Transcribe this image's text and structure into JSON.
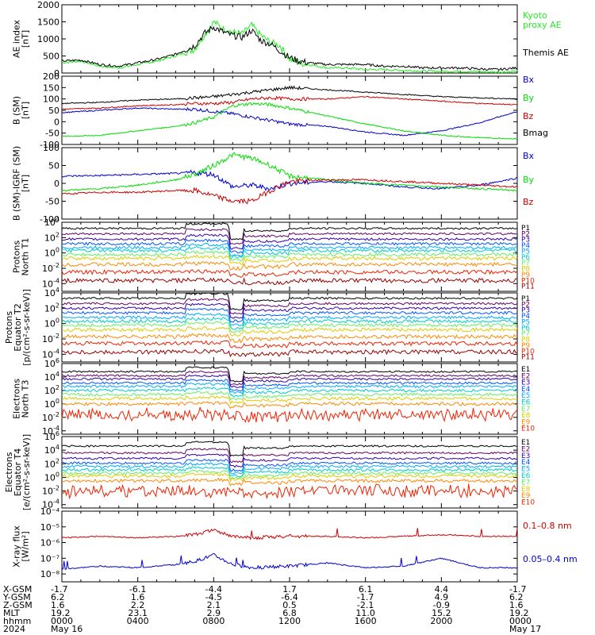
{
  "colors": {
    "black": "#000000",
    "green": "#00dd00",
    "blue": "#0000cc",
    "red": "#cc0000",
    "ae_green": "#22ee22",
    "xray_red": "#cc0000",
    "xray_blue": "#0000cc",
    "P1": "#000000",
    "P2": "#660066",
    "P3": "#3300aa",
    "P4": "#0055ff",
    "P5": "#00aaff",
    "P6": "#00cccc",
    "P7": "#66ee66",
    "P8": "#ddcc00",
    "P9": "#ff8800",
    "P10": "#ee2200",
    "P11": "#990000"
  },
  "chart_data": [
    {
      "type": "line",
      "id": "ae",
      "ylabel": [
        "AE index",
        "[nT]"
      ],
      "yticks": [
        "2000",
        "1500",
        "1000",
        "500",
        "0"
      ],
      "ylim": [
        0,
        2000
      ],
      "legend": [
        {
          "text": "Kyoto",
          "color": "ae_green"
        },
        {
          "text": "proxy AE",
          "color": "ae_green"
        },
        {
          "text": "Themis AE",
          "color": "black"
        }
      ],
      "series": [
        {
          "name": "Kyoto proxy AE",
          "color": "ae_green",
          "x": [
            0,
            1,
            2,
            3,
            4,
            5,
            6,
            7,
            7.5,
            8,
            8.5,
            9,
            9.5,
            10,
            10.5,
            11,
            11.5,
            12,
            12.5,
            13,
            14,
            15,
            16,
            17,
            18,
            19,
            20,
            21,
            22,
            23,
            24
          ],
          "values": [
            300,
            350,
            200,
            150,
            250,
            350,
            500,
            700,
            1100,
            1500,
            1300,
            1200,
            1150,
            1400,
            1100,
            900,
            800,
            400,
            300,
            250,
            150,
            150,
            100,
            100,
            80,
            60,
            50,
            50,
            40,
            30,
            50
          ]
        },
        {
          "name": "Themis AE",
          "color": "black",
          "x": [
            0,
            1,
            2,
            3,
            4,
            5,
            6,
            7,
            7.5,
            8,
            8.5,
            9,
            9.5,
            10,
            10.5,
            11,
            11.5,
            12,
            12.5,
            13,
            14,
            15,
            16,
            17,
            18,
            19,
            20,
            21,
            22,
            23,
            24
          ],
          "values": [
            350,
            380,
            250,
            200,
            300,
            400,
            550,
            800,
            1150,
            1350,
            1200,
            1100,
            1050,
            1250,
            950,
            850,
            650,
            450,
            350,
            300,
            250,
            250,
            250,
            200,
            200,
            150,
            150,
            150,
            120,
            100,
            150
          ]
        }
      ]
    },
    {
      "type": "line",
      "id": "bsm",
      "ylabel": [
        "B (SM)",
        "[nT]"
      ],
      "yticks": [
        "200",
        "150",
        "100",
        "50",
        "0",
        "-50",
        "-100"
      ],
      "ylim": [
        -100,
        200
      ],
      "legend": [
        {
          "text": "Bx",
          "color": "blue"
        },
        {
          "text": "By",
          "color": "green"
        },
        {
          "text": "Bz",
          "color": "red"
        },
        {
          "text": "Bmag",
          "color": "black"
        }
      ],
      "series": [
        {
          "name": "Bx",
          "color": "blue",
          "x": [
            0,
            2,
            4,
            6,
            7,
            8,
            9,
            10,
            11,
            12,
            14,
            16,
            18,
            20,
            22,
            24
          ],
          "values": [
            40,
            50,
            60,
            55,
            55,
            45,
            35,
            20,
            5,
            -10,
            -20,
            -45,
            -60,
            -40,
            -5,
            45
          ]
        },
        {
          "name": "By",
          "color": "green",
          "x": [
            0,
            2,
            4,
            6,
            7,
            8,
            9,
            10,
            11,
            12,
            14,
            16,
            18,
            20,
            22,
            24
          ],
          "values": [
            -65,
            -60,
            -40,
            -20,
            -5,
            20,
            70,
            80,
            75,
            60,
            25,
            -10,
            -40,
            -60,
            -70,
            -75
          ]
        },
        {
          "name": "Bz",
          "color": "red",
          "x": [
            0,
            2,
            4,
            6,
            7,
            8,
            9,
            10,
            11,
            12,
            14,
            16,
            18,
            20,
            22,
            24
          ],
          "values": [
            55,
            60,
            70,
            75,
            80,
            80,
            85,
            100,
            105,
            100,
            100,
            110,
            100,
            90,
            80,
            75
          ]
        },
        {
          "name": "Bmag",
          "color": "black",
          "x": [
            0,
            2,
            4,
            6,
            7,
            8,
            9,
            10,
            11,
            12,
            14,
            16,
            18,
            20,
            22,
            24
          ],
          "values": [
            80,
            85,
            95,
            100,
            105,
            110,
            120,
            130,
            140,
            150,
            140,
            130,
            120,
            110,
            105,
            100
          ]
        }
      ]
    },
    {
      "type": "line",
      "id": "bigrf",
      "ylabel": [
        "B (SM)-IGRF (SM)",
        "[nT]"
      ],
      "yticks": [
        "100",
        "50",
        "0",
        "-50",
        "-100"
      ],
      "ylim": [
        -100,
        100
      ],
      "legend": [
        {
          "text": "Bx",
          "color": "blue"
        },
        {
          "text": "By",
          "color": "green"
        },
        {
          "text": "Bz",
          "color": "red"
        }
      ],
      "series": [
        {
          "name": "Bx",
          "color": "blue",
          "x": [
            0,
            2,
            4,
            6,
            7,
            8,
            9,
            10,
            11,
            12,
            14,
            16,
            18,
            20,
            22,
            24
          ],
          "values": [
            20,
            22,
            25,
            28,
            30,
            25,
            -10,
            -5,
            -15,
            0,
            5,
            0,
            -10,
            -15,
            -5,
            15
          ]
        },
        {
          "name": "By",
          "color": "green",
          "x": [
            0,
            2,
            4,
            6,
            7,
            8,
            9,
            10,
            11,
            12,
            14,
            16,
            18,
            20,
            22,
            24
          ],
          "values": [
            -20,
            -15,
            -5,
            10,
            25,
            50,
            80,
            70,
            50,
            20,
            10,
            0,
            -5,
            -10,
            -15,
            -20
          ]
        },
        {
          "name": "Bz",
          "color": "red",
          "x": [
            0,
            2,
            4,
            6,
            7,
            8,
            9,
            10,
            11,
            12,
            14,
            16,
            18,
            20,
            22,
            24
          ],
          "values": [
            -30,
            -25,
            -25,
            -20,
            -20,
            -35,
            -50,
            -50,
            -20,
            5,
            10,
            10,
            5,
            0,
            -5,
            -10
          ]
        }
      ]
    },
    {
      "type": "line",
      "id": "pn",
      "ylabel": [
        "Protons",
        "North T1"
      ],
      "ylog": true,
      "yticks_log": [
        4,
        2,
        0,
        -2,
        -4
      ],
      "ylim_log": [
        -5,
        4
      ],
      "channel_labels": [
        "P1",
        "P2",
        "P3",
        "P4",
        "P5",
        "P6",
        "P7",
        "P8",
        "P9",
        "P10",
        "P11"
      ],
      "channel_levels": [
        3.2,
        2.5,
        1.8,
        1.2,
        0.7,
        0.3,
        -0.2,
        -0.7,
        -1.5,
        -2.5,
        -3.6
      ]
    },
    {
      "type": "line",
      "id": "pe",
      "ylabel": [
        "Protons",
        "Equator T2",
        "[p/(cm²-s-sr-keV)]"
      ],
      "ylog": true,
      "yticks_log": [
        4,
        2,
        0,
        -2,
        -4
      ],
      "ylim_log": [
        -5,
        4
      ],
      "channel_labels": [
        "P1",
        "P2",
        "P3",
        "P4",
        "P5",
        "P6",
        "P7",
        "P8",
        "P9",
        "P10",
        "P11"
      ],
      "channel_levels": [
        3.3,
        2.6,
        2.0,
        1.4,
        0.8,
        0.3,
        -0.2,
        -0.8,
        -1.7,
        -2.6,
        -3.7
      ]
    },
    {
      "type": "line",
      "id": "en",
      "ylabel": [
        "Electrons",
        "North T3"
      ],
      "ylog": true,
      "yticks_log": [
        6,
        4,
        2,
        0,
        -2,
        -4
      ],
      "ylim_log": [
        -4.5,
        6
      ],
      "channel_labels": [
        "E1",
        "E2",
        "E3",
        "E4",
        "E5",
        "E6",
        "E7",
        "E8",
        "E9",
        "E10"
      ],
      "channel_levels": [
        4.8,
        4.2,
        3.7,
        3.1,
        2.6,
        2.0,
        1.4,
        0.8,
        0.0,
        -1.6
      ]
    },
    {
      "type": "line",
      "id": "ee",
      "ylabel": [
        "Electrons",
        "Equator T4",
        "[e/(cm²-s-sr-keV)]"
      ],
      "ylog": true,
      "yticks_log": [
        6,
        4,
        2,
        0,
        -2,
        -4
      ],
      "ylim_log": [
        -4.5,
        6
      ],
      "channel_labels": [
        "E1",
        "E2",
        "E3",
        "E4",
        "E5",
        "E6",
        "E7",
        "E8",
        "E9",
        "E10"
      ],
      "channel_levels": [
        4.6,
        3.6,
        2.8,
        2.1,
        1.6,
        1.1,
        0.6,
        0.2,
        -0.5,
        -2.0
      ]
    },
    {
      "type": "line",
      "id": "xray",
      "ylabel": [
        "X-ray flux",
        "[W/m²]"
      ],
      "ylog": true,
      "ytick_labels": [
        "10⁻⁴",
        "10⁻⁵",
        "10⁻⁶",
        "10⁻⁷",
        "10⁻⁸"
      ],
      "yticks_log": [
        -4,
        -5,
        -6,
        -7,
        -8
      ],
      "ylim_log": [
        -8.5,
        -4
      ],
      "legend": [
        {
          "text": "0.1–0.8 nm",
          "color": "xray_red"
        },
        {
          "text": "0.05–0.4 nm",
          "color": "xray_blue"
        }
      ],
      "series": [
        {
          "name": "0.1–0.8 nm",
          "color": "xray_red",
          "x": [
            0,
            2,
            4,
            6,
            7,
            8,
            9,
            10,
            12,
            14,
            16,
            18,
            20,
            22,
            24
          ],
          "values": [
            -5.7,
            -5.6,
            -5.7,
            -5.6,
            -5.5,
            -5.2,
            -5.6,
            -5.7,
            -5.6,
            -5.6,
            -5.7,
            -5.6,
            -5.5,
            -5.6,
            -5.6
          ]
        },
        {
          "name": "0.05–0.4 nm",
          "color": "xray_blue",
          "x": [
            0,
            2,
            4,
            6,
            7,
            8,
            9,
            10,
            12,
            14,
            16,
            18,
            20,
            22,
            24
          ],
          "values": [
            -7.7,
            -7.5,
            -7.6,
            -7.4,
            -7.2,
            -6.8,
            -7.4,
            -7.6,
            -7.5,
            -7.3,
            -7.6,
            -7.5,
            -7.0,
            -7.6,
            -7.6
          ]
        }
      ]
    }
  ],
  "x_axis": {
    "row_labels": [
      "X-GSM",
      "Y-GSM",
      "Z-GSM",
      "MLT",
      "hhmm",
      "2024"
    ],
    "columns": [
      {
        "hour": 0,
        "values": [
          "-1.7",
          "6.2",
          "1.6",
          "19.2",
          "0000",
          "May 16"
        ]
      },
      {
        "hour": 4,
        "values": [
          "-6.1",
          "1.6",
          "2.2",
          "23.1",
          "0400",
          ""
        ]
      },
      {
        "hour": 8,
        "values": [
          "-4.4",
          "-4.5",
          "2.1",
          "2.9",
          "0800",
          ""
        ]
      },
      {
        "hour": 12,
        "values": [
          "1.7",
          "-6.4",
          "0.5",
          "6.8",
          "1200",
          ""
        ]
      },
      {
        "hour": 16,
        "values": [
          "6.1",
          "-1.7",
          "-2.1",
          "11.0",
          "1600",
          ""
        ]
      },
      {
        "hour": 20,
        "values": [
          "4.4",
          "4.9",
          "-0.9",
          "15.2",
          "2000",
          ""
        ]
      },
      {
        "hour": 24,
        "values": [
          "-1.7",
          "6.2",
          "1.6",
          "19.2",
          "0000",
          "May 17"
        ]
      }
    ]
  }
}
